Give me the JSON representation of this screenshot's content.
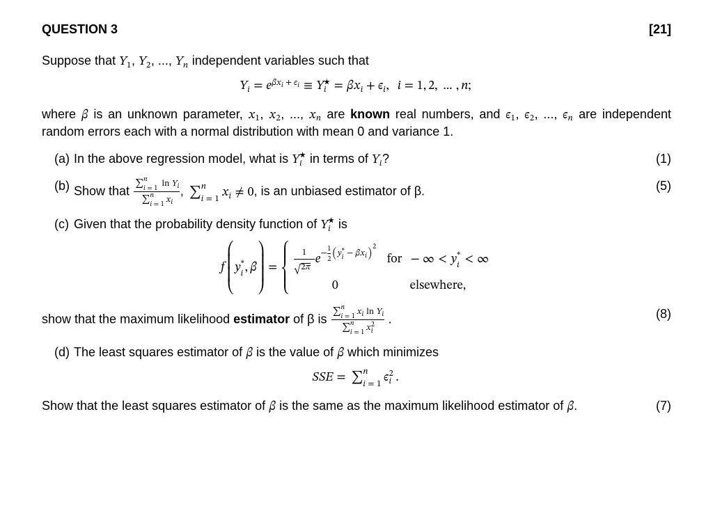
{
  "background_color": "#ffffff",
  "text_color": "#000000",
  "base_fontsize": 18,
  "header": {
    "title": "QUESTION 3",
    "total_marks": "[21]"
  },
  "intro_line": "Suppose that Y₁, Y₂, ..., Yₙ independent variables such that",
  "where_line": "where β is an unknown parameter, x₁, x₂, ..., xₙ are ",
  "where_bold": "known",
  "where_tail": " real numbers, and ε₁, ε₂, ..., εₙ are independent random errors each with a normal distribution with mean 0 and variance 1.",
  "parts": {
    "a": {
      "label": "(a)",
      "text": "In the above regression model, what is Yᵢ⋆ in terms of Yᵢ?",
      "marks": "(1)"
    },
    "b": {
      "label": "(b)",
      "lead": "Show that ",
      "mid": ", ",
      "cond": " is an unbiased estimator of β.",
      "marks": "(5)"
    },
    "c": {
      "label": "(c)",
      "lead": "Given that the probability density function of Yᵢ⋆ is",
      "for_text": "for",
      "else_text": "elsewhere,",
      "show_lead": "show that the maximum likelihood ",
      "show_bold": "estimator",
      "show_tail": " of β is ",
      "marks": "(8)"
    },
    "d": {
      "label": "(d)",
      "lead": "The least squares estimator of β is the value of β which minimizes",
      "tail": "Show that the least squares estimator of β is the same as the maximum likelihood estimator of β.",
      "marks": "(7)"
    }
  }
}
